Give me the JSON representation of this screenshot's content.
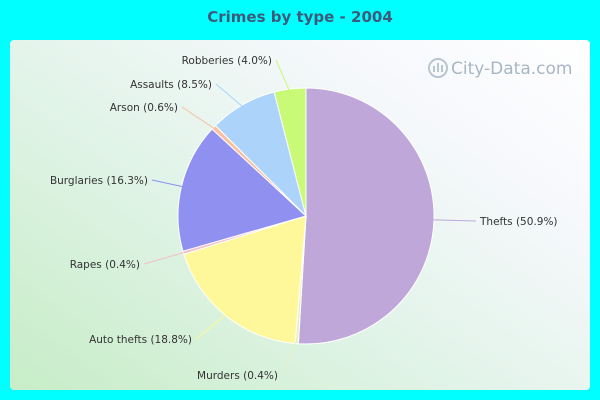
{
  "watermark": "City-Data.com",
  "chart_data": {
    "type": "pie",
    "title": "Crimes by type - 2004",
    "slices": [
      {
        "name": "Thefts",
        "value": 50.9,
        "label": "Thefts (50.9%)",
        "color": "#bfa8d9"
      },
      {
        "name": "Murders",
        "value": 0.4,
        "label": "Murders (0.4%)",
        "color": "#e8f0c0"
      },
      {
        "name": "Auto thefts",
        "value": 18.8,
        "label": "Auto thefts (18.8%)",
        "color": "#fff89a"
      },
      {
        "name": "Rapes",
        "value": 0.4,
        "label": "Rapes (0.4%)",
        "color": "#f4c0c8"
      },
      {
        "name": "Burglaries",
        "value": 16.3,
        "label": "Burglaries (16.3%)",
        "color": "#9090f0"
      },
      {
        "name": "Arson",
        "value": 0.6,
        "label": "Arson (0.6%)",
        "color": "#f8c0a0"
      },
      {
        "name": "Assaults",
        "value": 8.5,
        "label": "Assaults (8.5%)",
        "color": "#acd4fa"
      },
      {
        "name": "Robberies",
        "value": 4.0,
        "label": "Robberies (4.0%)",
        "color": "#c8fa78"
      }
    ]
  }
}
